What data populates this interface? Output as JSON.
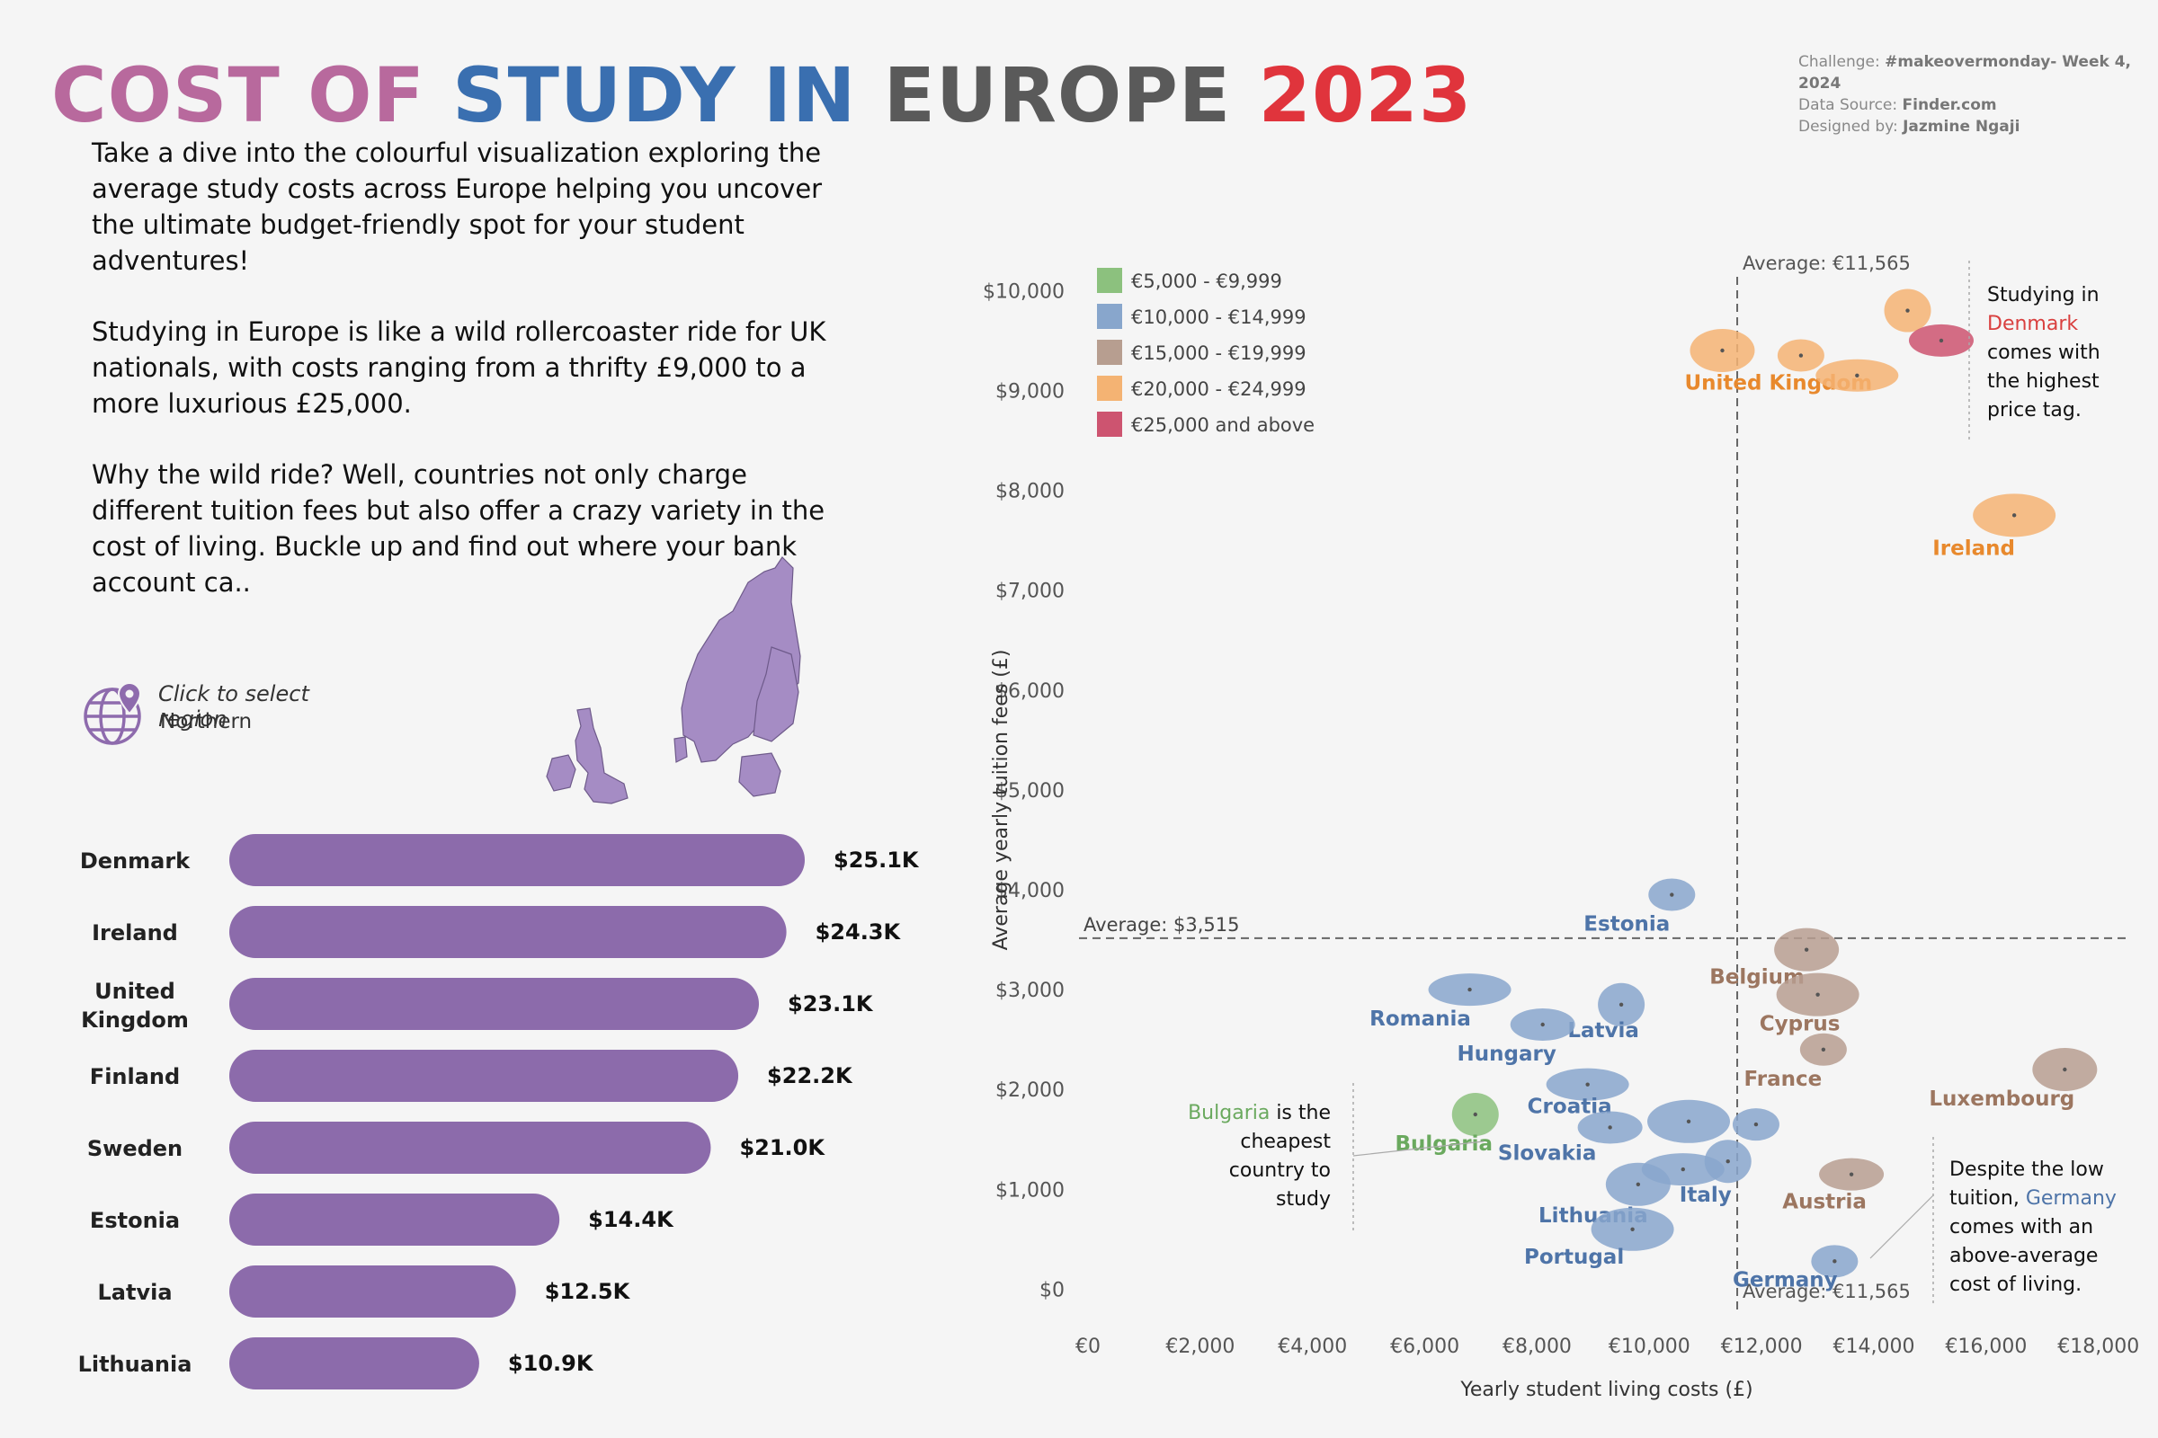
{
  "title": {
    "parts": [
      {
        "text": "COST OF ",
        "color": "#b8699d"
      },
      {
        "text": "STUDY IN ",
        "color": "#3a6fb0"
      },
      {
        "text": "EUROPE ",
        "color": "#5a5a5a"
      },
      {
        "text": "2023",
        "color": "#e0343c"
      }
    ]
  },
  "credits": {
    "challenge_label": "Challenge: ",
    "challenge": "#makeovermonday- Week 4, 2024",
    "source_label": "Data Source: ",
    "source": "Finder.com",
    "designer_label": "Designed by: ",
    "designer": "Jazmine Ngaji"
  },
  "intro": [
    "Take a dive into the colourful visualization exploring the average study costs across Europe helping you uncover the ultimate budget-friendly spot for your student adventures!",
    "Studying in Europe is like a wild rollercoaster ride for UK nationals, with costs ranging from a thrifty £9,000 to a more luxurious £25,000.",
    "Why the wild ride? Well, countries not only charge different tuition fees but also offer a crazy variety in the cost of living. Buckle up and find out where your bank account ca.."
  ],
  "region_selector": {
    "prompt": "Click to select region",
    "value": "Northern",
    "icon": "globe-pin-icon",
    "color": "#8e6bad"
  },
  "colors": {
    "bar": "#8c6bab",
    "map_fill": "#a58cc4",
    "range_5k": "#8cc17e",
    "range_10k": "#88a6cc",
    "range_15k": "#b79e90",
    "range_20k": "#f4b373",
    "range_25k": "#cd5470",
    "label_blue": "#4e74a8",
    "label_orange": "#e8892d",
    "label_brown": "#9c7660",
    "label_green": "#6aa95e",
    "label_red": "#d9403f"
  },
  "chart_data": [
    {
      "type": "bar",
      "orientation": "horizontal",
      "title": "",
      "categories": [
        "Denmark",
        "Ireland",
        "United Kingdom",
        "Finland",
        "Sweden",
        "Estonia",
        "Latvia",
        "Lithuania"
      ],
      "values": [
        25.1,
        24.3,
        23.1,
        22.2,
        21.0,
        14.4,
        12.5,
        10.9
      ],
      "value_labels": [
        "$25.1K",
        "$24.3K",
        "$23.1K",
        "$22.2K",
        "$21.0K",
        "$14.4K",
        "$12.5K",
        "$10.9K"
      ],
      "unit": "thousands"
    },
    {
      "type": "scatter",
      "xlabel": "Yearly student living costs (£)",
      "ylabel": "Average yearly tuition fees (£)",
      "xlim": [
        0,
        18500
      ],
      "ylim": [
        -500,
        10300
      ],
      "x_ticks": [
        0,
        2000,
        4000,
        6000,
        8000,
        10000,
        12000,
        14000,
        16000,
        18000
      ],
      "x_tick_labels": [
        "€0",
        "€2,000",
        "€4,000",
        "€6,000",
        "€8,000",
        "€10,000",
        "€12,000",
        "€14,000",
        "€16,000",
        "€18,000"
      ],
      "y_ticks": [
        0,
        1000,
        2000,
        3000,
        4000,
        5000,
        6000,
        7000,
        8000,
        9000,
        10000
      ],
      "y_tick_labels": [
        "$0",
        "$1,000",
        "$2,000",
        "$3,000",
        "$4,000",
        "$5,000",
        "$6,000",
        "$7,000",
        "$8,000",
        "$9,000",
        "$10,000"
      ],
      "reference_lines": {
        "x": {
          "value": 11565,
          "label_top": "Average: €11,565",
          "label_bottom": "Average: €11,565"
        },
        "y": {
          "value": 3515,
          "label": "Average: $3,515"
        }
      },
      "legend": {
        "position": "top-left",
        "entries": [
          {
            "label": "€5,000 - €9,999",
            "color_key": "range_5k"
          },
          {
            "label": "€10,000 - €14,999",
            "color_key": "range_10k"
          },
          {
            "label": "€15,000 - €19,999",
            "color_key": "range_15k"
          },
          {
            "label": "€20,000 - €24,999",
            "color_key": "range_20k"
          },
          {
            "label": "€25,000 and above",
            "color_key": "range_25k"
          }
        ]
      },
      "points": [
        {
          "label": "United Kingdom",
          "x": 12700,
          "y": 9350,
          "range": "range_20k",
          "show_label": true
        },
        {
          "label": "",
          "x": 11300,
          "y": 9400,
          "range": "range_20k",
          "show_label": false
        },
        {
          "label": "",
          "x": 13700,
          "y": 9150,
          "range": "range_20k",
          "show_label": false
        },
        {
          "label": "",
          "x": 14600,
          "y": 9800,
          "range": "range_20k",
          "show_label": false
        },
        {
          "label": "",
          "x": 15200,
          "y": 9500,
          "range": "range_25k",
          "show_label": false
        },
        {
          "label": "Ireland",
          "x": 16500,
          "y": 7750,
          "range": "range_20k",
          "show_label": true
        },
        {
          "label": "Estonia",
          "x": 10400,
          "y": 3950,
          "range": "range_10k",
          "show_label": true
        },
        {
          "label": "Belgium",
          "x": 12800,
          "y": 3400,
          "range": "range_15k",
          "show_label": true
        },
        {
          "label": "Romania",
          "x": 6800,
          "y": 3000,
          "range": "range_10k",
          "show_label": true
        },
        {
          "label": "Latvia",
          "x": 9500,
          "y": 2850,
          "range": "range_10k",
          "show_label": true
        },
        {
          "label": "Hungary",
          "x": 8100,
          "y": 2650,
          "range": "range_10k",
          "show_label": true
        },
        {
          "label": "Cyprus",
          "x": 13000,
          "y": 2950,
          "range": "range_15k",
          "show_label": true
        },
        {
          "label": "France",
          "x": 13100,
          "y": 2400,
          "range": "range_15k",
          "show_label": true
        },
        {
          "label": "Luxembourg",
          "x": 17400,
          "y": 2200,
          "range": "range_15k",
          "show_label": true
        },
        {
          "label": "Croatia",
          "x": 8900,
          "y": 2050,
          "range": "range_10k",
          "show_label": true
        },
        {
          "label": "Bulgaria",
          "x": 6900,
          "y": 1750,
          "range": "range_5k",
          "show_label": true
        },
        {
          "label": "Slovakia",
          "x": 9300,
          "y": 1620,
          "range": "range_10k",
          "show_label": true
        },
        {
          "label": "",
          "x": 10700,
          "y": 1680,
          "range": "range_10k",
          "show_label": false
        },
        {
          "label": "",
          "x": 11900,
          "y": 1650,
          "range": "range_10k",
          "show_label": false
        },
        {
          "label": "Lithuania",
          "x": 9800,
          "y": 1050,
          "range": "range_10k",
          "show_label": true
        },
        {
          "label": "Italy",
          "x": 10600,
          "y": 1200,
          "range": "range_10k",
          "show_label": true
        },
        {
          "label": "",
          "x": 11400,
          "y": 1280,
          "range": "range_10k",
          "show_label": false
        },
        {
          "label": "Austria",
          "x": 13600,
          "y": 1150,
          "range": "range_15k",
          "show_label": true
        },
        {
          "label": "Portugal",
          "x": 9700,
          "y": 600,
          "range": "range_10k",
          "show_label": true
        },
        {
          "label": "Germany",
          "x": 13300,
          "y": 280,
          "range": "range_10k",
          "show_label": true
        }
      ]
    }
  ],
  "annotations": {
    "denmark": {
      "before": "Studying in",
      "highlight": "Denmark",
      "after": [
        "comes with",
        "the highest",
        "price tag."
      ]
    },
    "bulgaria": {
      "highlight": "Bulgaria",
      "after_first": " is the",
      "lines": [
        "cheapest",
        "country to",
        "study"
      ]
    },
    "germany": {
      "lines_before": [
        "Despite the low"
      ],
      "mixed_before": "tuition, ",
      "highlight": "Germany",
      "lines_after": [
        "comes with an",
        "above-average",
        "cost of living."
      ]
    }
  }
}
